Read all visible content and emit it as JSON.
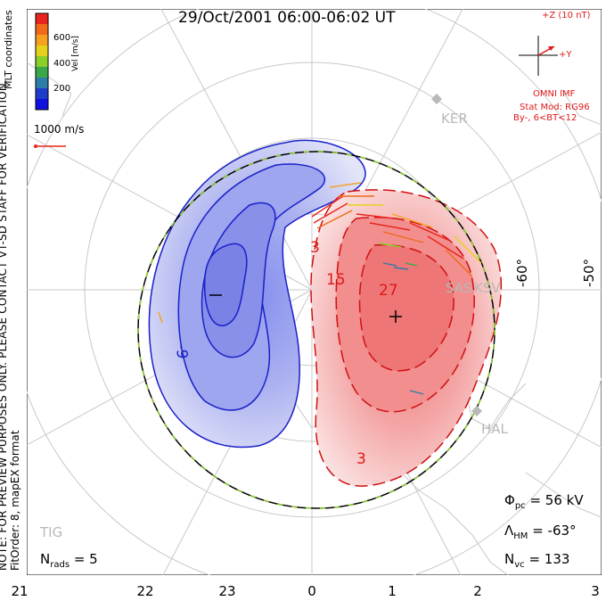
{
  "title": "29/Oct/2001 06:00-06:02 UT",
  "side_note": "NOTE: FOR PREVIEW PURPOSES ONLY. PLEASE CONTACT VT-SD STAFF FOR VERIFICATION.",
  "side_note2": "FitOrder: 8, mapEX format",
  "coord_label": "MLT coordinates",
  "colorbar": {
    "label": "Vel [m/s]",
    "ticks": [
      "600",
      "400",
      "200"
    ],
    "colors": [
      "#e8241c",
      "#f06a1a",
      "#f5a020",
      "#e6d21c",
      "#8ccf2a",
      "#38a84a",
      "#2e7ca8",
      "#1e3cc8",
      "#1010e0"
    ]
  },
  "ref_vector_label": "1000 m/s",
  "imf": {
    "z_label": "+Z (10 nT)",
    "y_label": "+Y",
    "source": "OMNI IMF",
    "model": "Stat Mod: RG96",
    "condition": "By-, 6<BT<12"
  },
  "stations": [
    "KER",
    "SAS",
    "KSV",
    "HAL",
    "TIG"
  ],
  "lat_labels": [
    "-60°",
    "-50°"
  ],
  "contour_labels": [
    "3",
    "15",
    "27",
    "-9",
    "3",
    "-"
  ],
  "center_marks": [
    "-",
    "+"
  ],
  "stats": {
    "phi_label": "Φ",
    "phi_sub": "pc",
    "phi_value": "= 56 kV",
    "lambda_label": "Λ",
    "lambda_sub": "HM",
    "lambda_value": "= -63°",
    "nvc_label": "N",
    "nvc_sub": "vc",
    "nvc_value": "= 133",
    "nrads_label": "N",
    "nrads_sub": "rads",
    "nrads_value": "= 5"
  },
  "mlt_ticks": [
    "21",
    "22",
    "23",
    "0",
    "1",
    "2",
    "3"
  ]
}
